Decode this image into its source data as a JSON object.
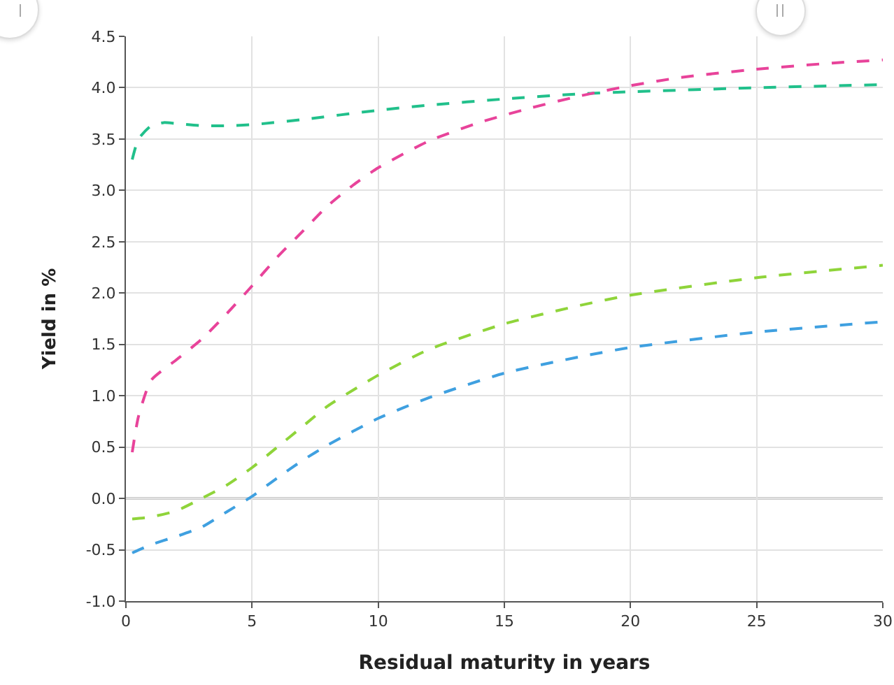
{
  "chart_data": {
    "type": "line",
    "xlabel": "Residual maturity in years",
    "ylabel": "Yield in %",
    "xlim": [
      0,
      30
    ],
    "xticks": [
      0,
      5,
      10,
      15,
      20,
      25,
      30
    ],
    "ylim": [
      -1,
      4.5
    ],
    "yticks": [
      {
        "value": -1,
        "label": "-1.0"
      },
      {
        "value": -0.5,
        "label": "-0.5"
      },
      {
        "value": 0,
        "label": "0.0"
      },
      {
        "value": 0.5,
        "label": "0.5"
      },
      {
        "value": 1,
        "label": "1.0"
      },
      {
        "value": 1.5,
        "label": "1.5"
      },
      {
        "value": 2,
        "label": "2.0"
      },
      {
        "value": 2.5,
        "label": "2.5"
      },
      {
        "value": 3,
        "label": "3.0"
      },
      {
        "value": 3.5,
        "label": "3.5"
      },
      {
        "value": 4,
        "label": "4.0"
      },
      {
        "value": 4.5,
        "label": "4.5"
      }
    ],
    "grid": true,
    "marker": "none",
    "line_style": "dashed",
    "ref_lines": [
      {
        "axis": "y",
        "value": 0,
        "color": "#999999"
      }
    ],
    "series": [
      {
        "color": "#21c08b",
        "x": [
          0.25,
          0.5,
          1,
          1.5,
          2,
          3,
          4,
          5,
          7,
          10,
          12,
          15,
          18,
          20,
          25,
          30
        ],
        "values": [
          3.3,
          3.5,
          3.63,
          3.66,
          3.65,
          3.63,
          3.63,
          3.64,
          3.69,
          3.78,
          3.83,
          3.89,
          3.94,
          3.96,
          4.0,
          4.03
        ]
      },
      {
        "color": "#e8439a",
        "x": [
          0.25,
          0.5,
          1,
          2,
          3,
          4,
          5,
          6,
          7,
          8,
          9,
          10,
          12,
          14,
          16,
          18,
          20,
          22,
          25,
          28,
          30
        ],
        "values": [
          0.45,
          0.8,
          1.15,
          1.35,
          1.55,
          1.8,
          2.07,
          2.35,
          2.6,
          2.85,
          3.05,
          3.22,
          3.48,
          3.66,
          3.8,
          3.92,
          4.02,
          4.1,
          4.18,
          4.24,
          4.27
        ]
      },
      {
        "color": "#8fd43a",
        "x": [
          0.25,
          1,
          2,
          3,
          4,
          5,
          6,
          7,
          8,
          10,
          12,
          15,
          18,
          20,
          25,
          30
        ],
        "values": [
          -0.2,
          -0.18,
          -0.12,
          0.0,
          0.13,
          0.3,
          0.5,
          0.7,
          0.9,
          1.2,
          1.45,
          1.7,
          1.88,
          1.98,
          2.15,
          2.27
        ]
      },
      {
        "color": "#3fa0e0",
        "x": [
          0.25,
          1,
          2,
          3,
          4,
          5,
          6,
          7,
          8,
          10,
          12,
          15,
          18,
          20,
          25,
          30
        ],
        "values": [
          -0.53,
          -0.45,
          -0.37,
          -0.28,
          -0.13,
          0.02,
          0.2,
          0.37,
          0.52,
          0.78,
          0.98,
          1.22,
          1.38,
          1.47,
          1.62,
          1.72
        ]
      }
    ]
  }
}
